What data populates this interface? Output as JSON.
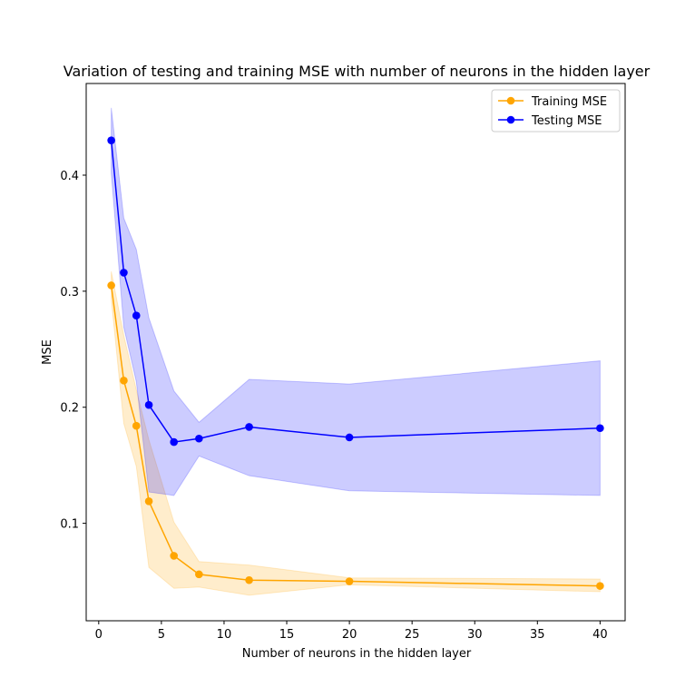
{
  "chart_data": {
    "type": "line",
    "title": "Variation of testing and training MSE with number of neurons in the hidden layer",
    "xlabel": "Number of neurons in the hidden layer",
    "ylabel": "MSE",
    "xlim": [
      -1,
      42
    ],
    "ylim": [
      0.016,
      0.479
    ],
    "xticks": [
      0,
      5,
      10,
      15,
      20,
      25,
      30,
      35,
      40
    ],
    "xtick_labels": [
      "0",
      "5",
      "10",
      "15",
      "20",
      "25",
      "30",
      "35",
      "40"
    ],
    "yticks": [
      0.1,
      0.2,
      0.3,
      0.4
    ],
    "ytick_labels": [
      "0.1",
      "0.2",
      "0.3",
      "0.4"
    ],
    "grid": false,
    "legend_position": "top-right",
    "x": [
      1,
      2,
      3,
      4,
      6,
      8,
      12,
      20,
      40
    ],
    "series": [
      {
        "name": "Training MSE",
        "color": "#ffa500",
        "marker": "circle",
        "values": [
          0.305,
          0.223,
          0.184,
          0.119,
          0.072,
          0.056,
          0.051,
          0.05,
          0.046
        ],
        "band_lower": [
          0.293,
          0.186,
          0.149,
          0.062,
          0.044,
          0.045,
          0.038,
          0.047,
          0.041
        ],
        "band_upper": [
          0.317,
          0.262,
          0.215,
          0.172,
          0.101,
          0.067,
          0.064,
          0.053,
          0.052
        ]
      },
      {
        "name": "Testing MSE",
        "color": "#0000ff",
        "marker": "circle",
        "values": [
          0.43,
          0.316,
          0.279,
          0.202,
          0.17,
          0.173,
          0.183,
          0.174,
          0.182
        ],
        "band_lower": [
          0.402,
          0.269,
          0.222,
          0.127,
          0.124,
          0.158,
          0.141,
          0.128,
          0.124
        ],
        "band_upper": [
          0.458,
          0.363,
          0.336,
          0.277,
          0.214,
          0.187,
          0.224,
          0.22,
          0.24
        ]
      }
    ]
  }
}
